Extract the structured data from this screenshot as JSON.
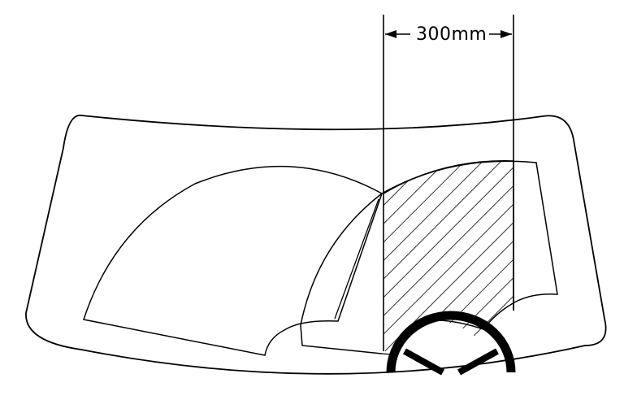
{
  "dimension": {
    "label": "300mm"
  },
  "colors": {
    "line": "#000000",
    "background": "#ffffff"
  }
}
